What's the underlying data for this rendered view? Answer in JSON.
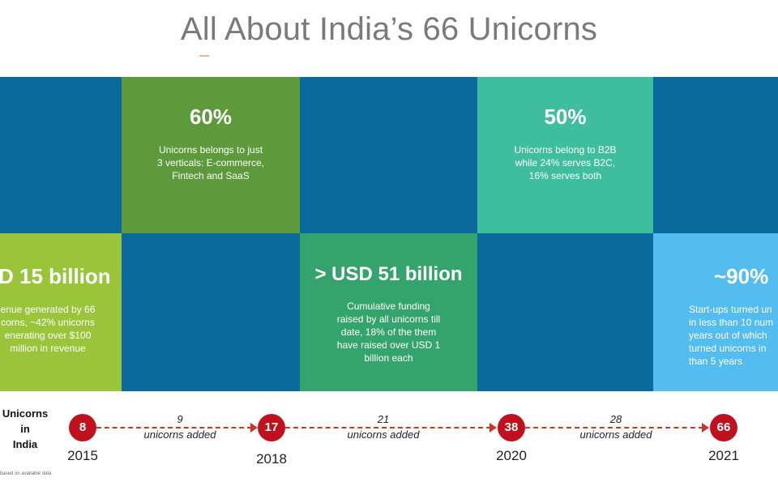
{
  "title": "All About India’s 66 Unicorns",
  "tiles": [
    {
      "stat": "60%",
      "text": "Unicorns belongs to just\n3 verticals: E-commerce,\nFintech and SaaS",
      "color": "#5d9a3c"
    },
    {
      "stat": "50%",
      "text": "Unicorns belong to B2B\nwhile 24% serves B2C,\n16% serves both",
      "color": "#3fbe9e"
    },
    {
      "stat": "D 15 billion",
      "text": "enue generated by 66\ncorns, ~42% unicorns\nenerating over $100\nmillion in revenue",
      "color": "#9ac53a"
    },
    {
      "stat": "> USD 51 billion",
      "text": "Cumulative funding\nraised by all unicorns till\ndate, 18% of the them\nhave raised over USD 1\nbillion each",
      "color": "#35a46c"
    },
    {
      "stat": "~90%",
      "text": "Start-ups turned un\nin less than 10 num\nyears out of which\nturned unicorns in\nthan 5 years",
      "color": "#54bdf0"
    }
  ],
  "blue_color": "#0a6a9e",
  "timeline": {
    "label": "Unicorns\nin\nIndia",
    "points": [
      {
        "count": "8",
        "year": "2015"
      },
      {
        "count": "17",
        "year": "2018"
      },
      {
        "count": "38",
        "year": "2020"
      },
      {
        "count": "66",
        "year": "2021"
      }
    ],
    "gaps": [
      {
        "count": "9",
        "text": "unicorns added"
      },
      {
        "count": "21",
        "text": "unicorns added"
      },
      {
        "count": "28",
        "text": "unicorns added"
      }
    ],
    "footnote": "based on available data",
    "accent_color": "#c0121e"
  }
}
